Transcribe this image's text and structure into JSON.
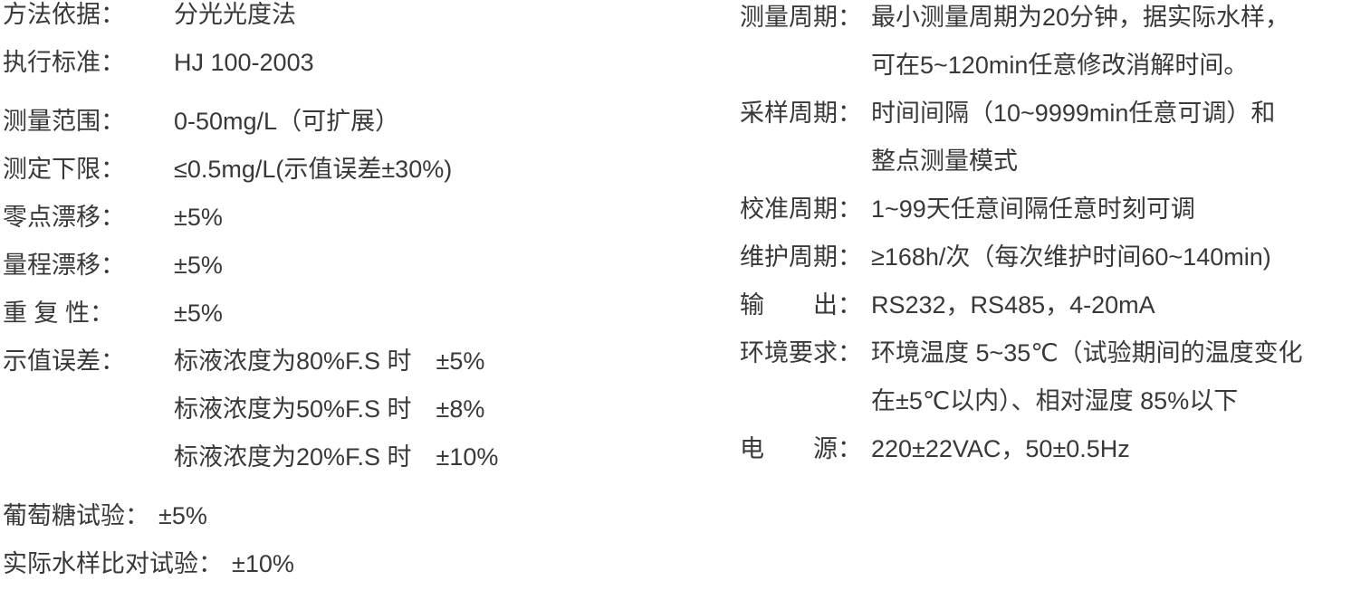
{
  "page": {
    "background_color": "#ffffff",
    "text_color": "#3a3837"
  },
  "left_column": {
    "entries": [
      {
        "label": "方法依据：",
        "lines": [
          "分光光度法"
        ]
      },
      {
        "label": "执行标准：",
        "lines": [
          "HJ 100-2003"
        ]
      },
      {
        "label": "测量范围：",
        "lines": [
          "0-50mg/L（可扩展）"
        ],
        "gap_before": true
      },
      {
        "label": "测定下限：",
        "lines": [
          "≤0.5mg/L(示值误差±30%)"
        ]
      },
      {
        "label": "零点漂移：",
        "lines": [
          "±5%"
        ]
      },
      {
        "label": "量程漂移：",
        "lines": [
          "±5%"
        ]
      },
      {
        "label": "重 复 性：",
        "lines": [
          "±5%"
        ]
      },
      {
        "label": "示值误差：",
        "lines": [
          "标液浓度为80%F.S 时　±5%",
          "标液浓度为50%F.S 时　±8%",
          "标液浓度为20%F.S 时　±10%"
        ]
      },
      {
        "label": "葡萄糖试验：",
        "lines": [
          "±5%"
        ],
        "wide": true,
        "gap_before": true
      },
      {
        "label": "实际水样比对试验：",
        "lines": [
          "±10%"
        ],
        "wide": true
      }
    ]
  },
  "right_column": {
    "entries": [
      {
        "label": "测量周期：",
        "lines": [
          "最小测量周期为20分钟，据实际水样，",
          "可在5~120min任意修改消解时间。"
        ]
      },
      {
        "label": "采样周期：",
        "lines": [
          "时间间隔（10~9999min任意可调）和",
          "整点测量模式"
        ]
      },
      {
        "label": "校准周期：",
        "lines": [
          "1~99天任意间隔任意时刻可调"
        ]
      },
      {
        "label": "维护周期：",
        "lines": [
          "≥168h/次（每次维护时间60~140min)"
        ]
      },
      {
        "label": "输　　出：",
        "lines": [
          "RS232，RS485，4-20mA"
        ]
      },
      {
        "label": "环境要求：",
        "lines": [
          "环境温度 5~35℃（试验期间的温度变化",
          "在±5℃以内）、相对湿度 85%以下"
        ]
      },
      {
        "label": "电　　源：",
        "lines": [
          "220±22VAC，50±0.5Hz"
        ]
      }
    ]
  }
}
